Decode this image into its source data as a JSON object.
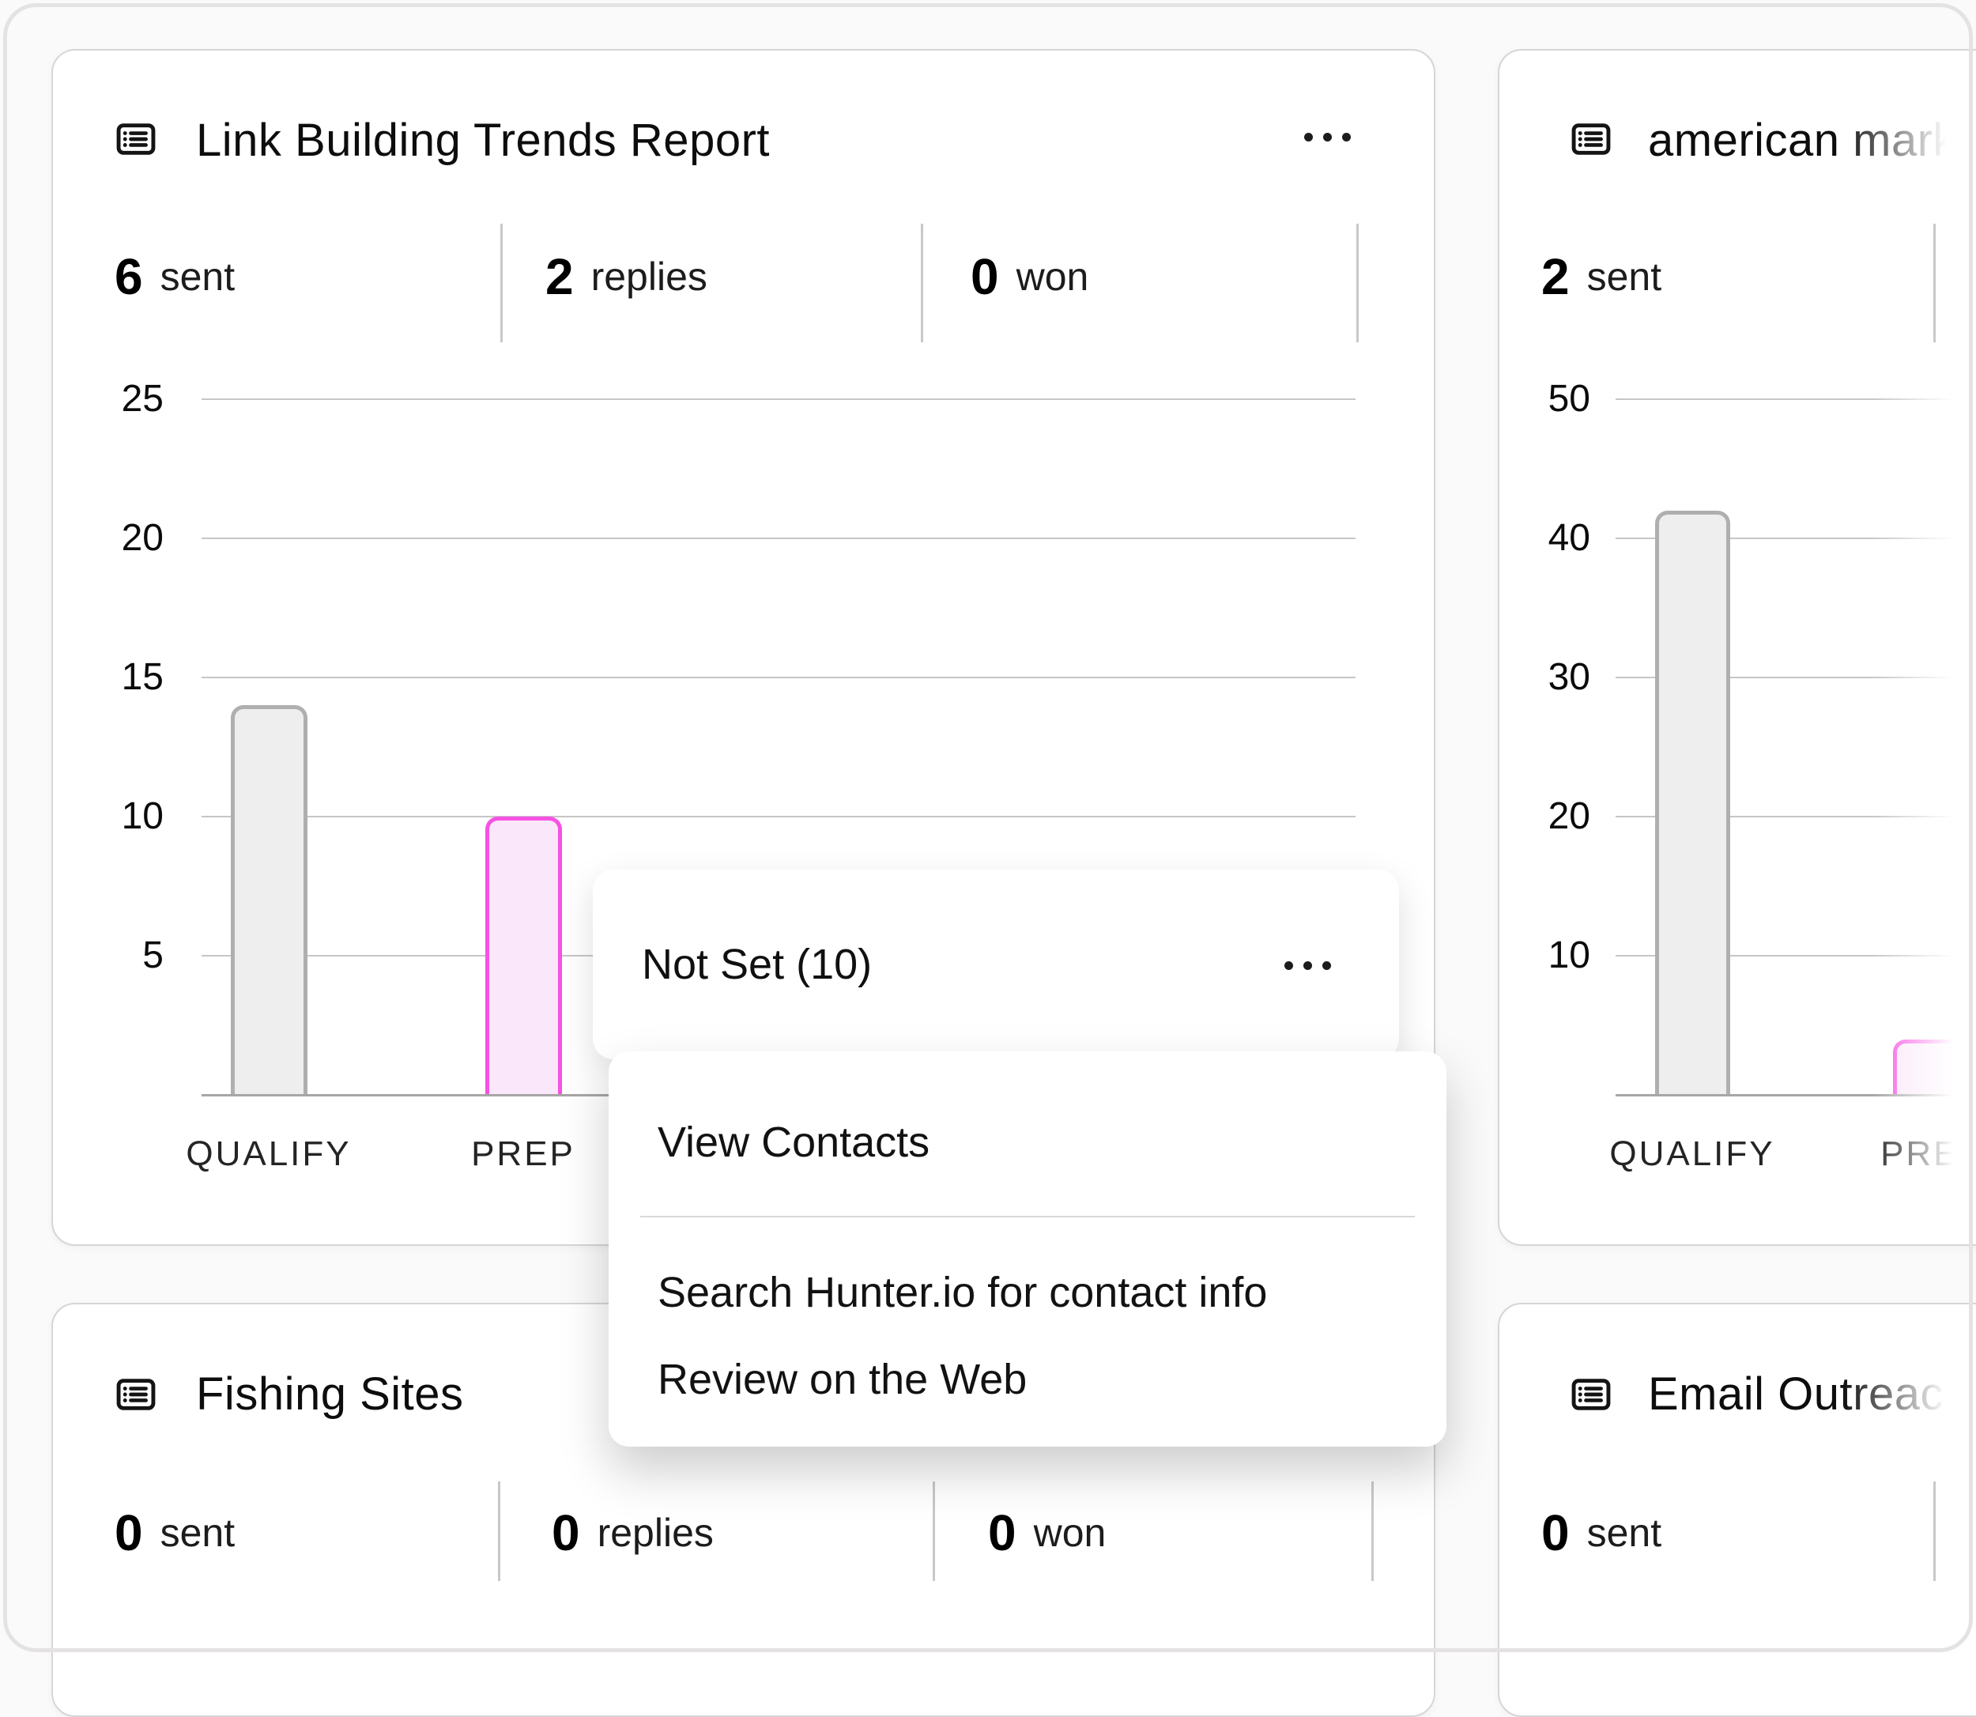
{
  "colors": {
    "bar_gray_fill": "#efeeee",
    "bar_gray_border": "#b0aeae",
    "bar_pink_fill": "#fbe7fa",
    "bar_pink_border": "#f652e4",
    "gridline": "#c7c6c6",
    "axis_line": "#a8a6a6",
    "card_border": "#d7d5d5",
    "text_primary": "#0d0d0d"
  },
  "cards": {
    "link_building": {
      "title": "Link Building Trends Report",
      "stats": [
        {
          "value": "6",
          "label": "sent"
        },
        {
          "value": "2",
          "label": "replies"
        },
        {
          "value": "0",
          "label": "won"
        }
      ]
    },
    "american_marketing": {
      "title": "american mark",
      "stats": [
        {
          "value": "2",
          "label": "sent"
        }
      ]
    },
    "fishing_sites": {
      "title": "Fishing Sites",
      "stats": [
        {
          "value": "0",
          "label": "sent"
        },
        {
          "value": "0",
          "label": "replies"
        },
        {
          "value": "0",
          "label": "won"
        }
      ]
    },
    "email_outreach": {
      "title": "Email Outreach",
      "stats": [
        {
          "value": "0",
          "label": "sent"
        }
      ]
    }
  },
  "popover": {
    "title": "Not Set (10)"
  },
  "context_menu": {
    "items": [
      "View Contacts",
      "Search Hunter.io for contact info",
      "Review on the Web"
    ]
  },
  "chart_data": [
    {
      "id": "link_building_trends_report",
      "type": "bar",
      "title": "Link Building Trends Report",
      "categories": [
        "QUALIFY",
        "PREP"
      ],
      "values": [
        14,
        10
      ],
      "bar_styles": [
        "gray",
        "pink"
      ],
      "ylim": [
        0,
        25
      ],
      "yticks": [
        5,
        10,
        15,
        20,
        25
      ],
      "grid": true,
      "legend": "none",
      "xlabel": "",
      "ylabel": ""
    },
    {
      "id": "american_marketing",
      "type": "bar",
      "title": "american mark",
      "categories": [
        "QUALIFY",
        "PREP"
      ],
      "values": [
        42,
        4
      ],
      "bar_styles": [
        "gray",
        "pink"
      ],
      "ylim": [
        0,
        50
      ],
      "yticks": [
        10,
        20,
        30,
        40,
        50
      ],
      "grid": true,
      "legend": "none",
      "xlabel": "",
      "ylabel": ""
    }
  ]
}
